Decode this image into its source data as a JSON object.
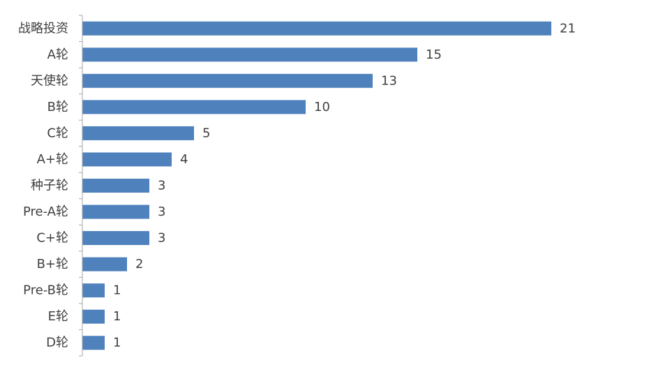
{
  "chart_data": {
    "type": "bar",
    "orientation": "horizontal",
    "categories": [
      "战略投资",
      "A轮",
      "天使轮",
      "B轮",
      "C轮",
      "A+轮",
      "种子轮",
      "Pre-A轮",
      "C+轮",
      "B+轮",
      "Pre-B轮",
      "E轮",
      "D轮"
    ],
    "values": [
      21,
      15,
      13,
      10,
      5,
      4,
      3,
      3,
      3,
      2,
      1,
      1,
      1
    ],
    "value_labels": [
      "21",
      "15",
      "13",
      "10",
      "5",
      "4",
      "3",
      "3",
      "3",
      "2",
      "1",
      "1",
      "1"
    ],
    "bar_color": "#4f81bd",
    "axis_color": "#a6a6a6",
    "text_color": "#404040",
    "grid": false,
    "legend": false
  }
}
